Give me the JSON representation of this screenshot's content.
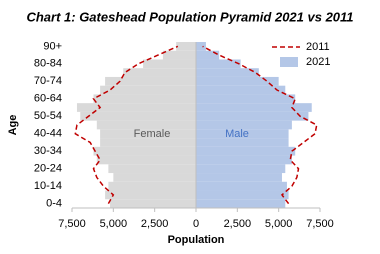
{
  "chart_data": {
    "type": "pyramid",
    "title": "Chart 1: Gateshead Population Pyramid 2021 vs 2011",
    "x_label": "Population",
    "y_label": "Age",
    "annotations": [
      "Female",
      "Male"
    ],
    "categories": [
      "0-4",
      null,
      "10-14",
      null,
      "20-24",
      null,
      "30-34",
      null,
      "40-44",
      null,
      "50-54",
      null,
      "60-64",
      null,
      "70-74",
      null,
      "80-84",
      null,
      "90+"
    ],
    "series": [
      {
        "name": "2011",
        "color": "#c00000",
        "style": "dashed-line",
        "female": [
          -5300,
          -5000,
          -5600,
          -6000,
          -6200,
          -5800,
          -6100,
          -6400,
          -7300,
          -7200,
          -6500,
          -5800,
          -6200,
          -5200,
          -4600,
          -4300,
          -3500,
          -2300,
          -1100
        ],
        "male": [
          5600,
          5200,
          5800,
          6100,
          6200,
          5700,
          5800,
          6500,
          7200,
          7300,
          6300,
          5800,
          6000,
          4900,
          4300,
          3600,
          2600,
          1400,
          400
        ]
      },
      {
        "name": "2021",
        "color": "#b4c7e7",
        "female_color": "#d9d9d9",
        "style": "bar",
        "female": [
          -5200,
          -5500,
          -5300,
          -5000,
          -5300,
          -6000,
          -6200,
          -5800,
          -5800,
          -6000,
          -7000,
          -7200,
          -6200,
          -5800,
          -5500,
          -4400,
          -3200,
          -2000,
          -1200
        ],
        "male": [
          5400,
          5600,
          5500,
          5200,
          5400,
          5800,
          6000,
          5600,
          5600,
          5800,
          6800,
          7000,
          6000,
          5400,
          5000,
          3800,
          2700,
          1400,
          600
        ]
      }
    ],
    "xlim": [
      -7500,
      7500
    ],
    "xticks": [
      {
        "value": -7500,
        "label": "7,500"
      },
      {
        "value": -5000,
        "label": "5,000"
      },
      {
        "value": -2500,
        "label": "2,500"
      },
      0,
      {
        "value": 2500,
        "label": "2,500"
      },
      {
        "value": 5000,
        "label": "5,000"
      },
      {
        "value": 7500,
        "label": "7,500"
      }
    ],
    "legend": "top-right"
  }
}
